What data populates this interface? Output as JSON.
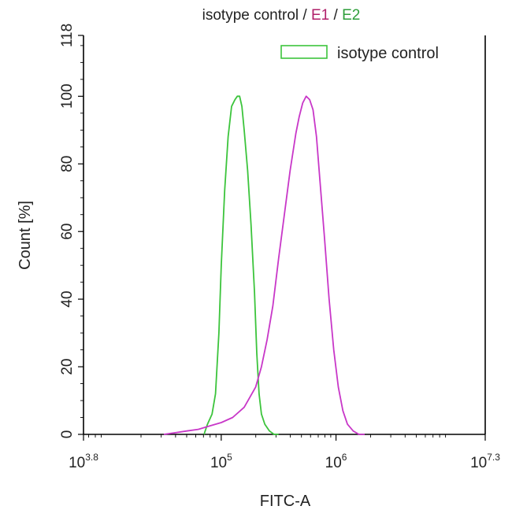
{
  "chart_data": {
    "type": "line",
    "title": {
      "parts": [
        {
          "text": "isotype control",
          "color": "#222222"
        },
        {
          "text": " / ",
          "color": "#222222"
        },
        {
          "text": "E1",
          "color": "#b0206a"
        },
        {
          "text": " / ",
          "color": "#222222"
        },
        {
          "text": "E2",
          "color": "#2e9e3a"
        }
      ]
    },
    "xlabel": "FITC-A",
    "ylabel": "Count  [%]",
    "x_scale": "log10",
    "xlim": [
      3.8,
      7.3
    ],
    "ylim": [
      0,
      118
    ],
    "x_ticks": [
      {
        "base": "10",
        "exp": "3.8",
        "value": 3.8
      },
      {
        "base": "10",
        "exp": "5",
        "value": 5
      },
      {
        "base": "10",
        "exp": "6",
        "value": 6
      },
      {
        "base": "10",
        "exp": "7.3",
        "value": 7.3
      }
    ],
    "y_ticks": [
      {
        "label": "0",
        "value": 0
      },
      {
        "label": "20",
        "value": 20
      },
      {
        "label": "40",
        "value": 40
      },
      {
        "label": "60",
        "value": 60
      },
      {
        "label": "80",
        "value": 80
      },
      {
        "label": "100",
        "value": 100
      },
      {
        "label": "118",
        "value": 118
      }
    ],
    "legend": {
      "position": "top-right",
      "entries": [
        {
          "label": "isotype control",
          "color": "#3cc43c"
        }
      ]
    },
    "grid": false,
    "series": [
      {
        "color": "#3cc43c",
        "x": [
          4.85,
          4.88,
          4.92,
          4.95,
          4.98,
          5.0,
          5.03,
          5.06,
          5.09,
          5.12,
          5.14,
          5.16,
          5.18,
          5.2,
          5.23,
          5.26,
          5.29,
          5.31,
          5.33,
          5.35,
          5.38,
          5.42,
          5.46,
          5.5
        ],
        "y": [
          0,
          3,
          6,
          12,
          30,
          50,
          72,
          88,
          97,
          99,
          100,
          100,
          97,
          90,
          78,
          62,
          42,
          24,
          12,
          6,
          3,
          1,
          0,
          0
        ]
      },
      {
        "color": "#c837c8",
        "x": [
          4.5,
          4.6,
          4.7,
          4.8,
          4.9,
          5.0,
          5.1,
          5.2,
          5.3,
          5.35,
          5.4,
          5.45,
          5.5,
          5.55,
          5.6,
          5.65,
          5.68,
          5.71,
          5.74,
          5.77,
          5.8,
          5.83,
          5.86,
          5.9,
          5.94,
          5.98,
          6.02,
          6.06,
          6.1,
          6.15,
          6.2,
          6.25
        ],
        "y": [
          0,
          0.5,
          1,
          1.5,
          2.5,
          3.5,
          5,
          8,
          14,
          20,
          28,
          38,
          52,
          65,
          78,
          89,
          94,
          98,
          100,
          99,
          96,
          88,
          75,
          58,
          40,
          25,
          14,
          7,
          3,
          1,
          0,
          0
        ]
      }
    ]
  }
}
